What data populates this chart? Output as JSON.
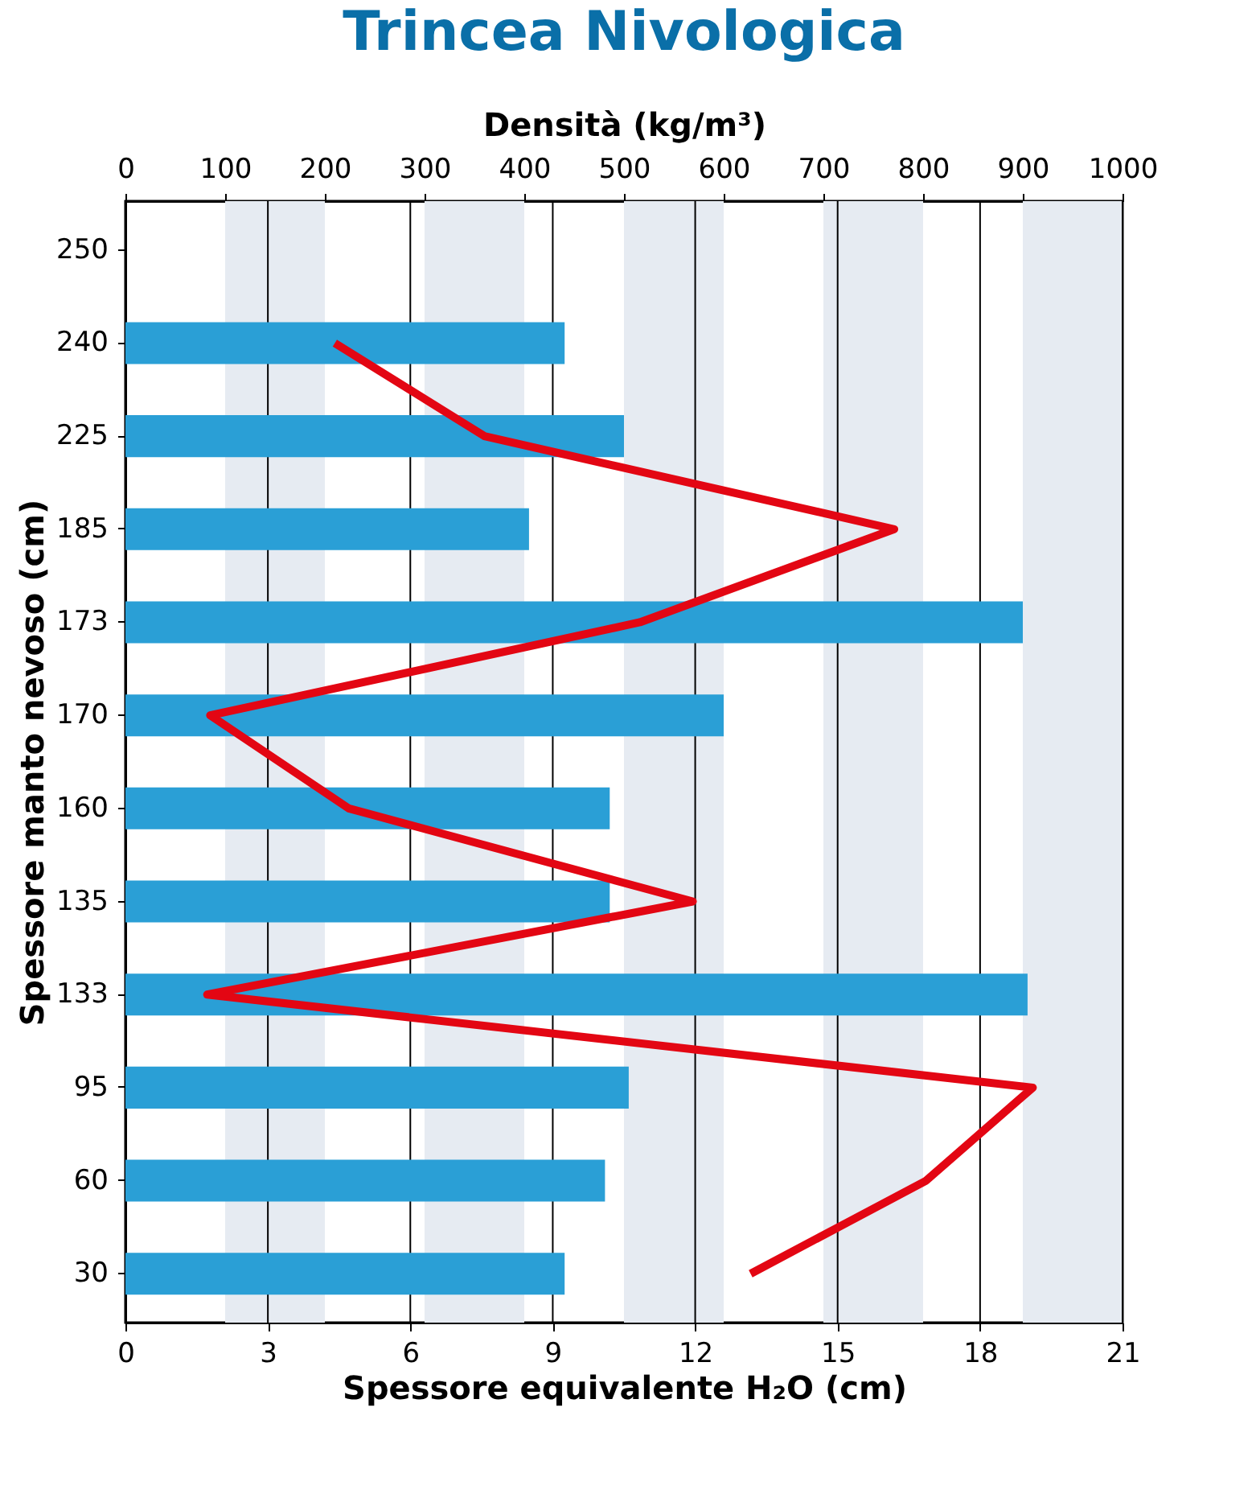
{
  "chart_data": {
    "type": "bar",
    "orientation": "horizontal",
    "title": "Trincea Nivologica",
    "xlabel": "Spessore equivalente H₂O (cm)",
    "x2label": "Densità (kg/m³)",
    "ylabel": "Spessore manto nevoso (cm)",
    "categories": [
      "250",
      "240",
      "225",
      "185",
      "173",
      "170",
      "160",
      "135",
      "133",
      "95",
      "60",
      "30"
    ],
    "series": [
      {
        "color": "#2a9fd6",
        "values": [
          null,
          9.25,
          10.5,
          8.5,
          18.9,
          12.6,
          10.2,
          10.2,
          19.0,
          10.6,
          10.1,
          9.25
        ]
      },
      {
        "type": "line",
        "axis": "x2",
        "color": "#e30613",
        "values": [
          null,
          210,
          360,
          771,
          516,
          85,
          224,
          569,
          82,
          910,
          803,
          627
        ]
      }
    ],
    "xlim": [
      0,
      21
    ],
    "xticks": [
      0,
      3,
      6,
      9,
      12,
      15,
      18,
      21
    ],
    "x2lim": [
      0,
      1000
    ],
    "x2ticks": [
      0,
      100,
      200,
      300,
      400,
      500,
      600,
      700,
      800,
      900,
      1000
    ],
    "bands": [
      {
        "axis": "x2",
        "from": 100,
        "to": 200,
        "color": "#e6ebf2"
      },
      {
        "axis": "x2",
        "from": 300,
        "to": 400,
        "color": "#e6ebf2"
      },
      {
        "axis": "x2",
        "from": 500,
        "to": 600,
        "color": "#e6ebf2"
      },
      {
        "axis": "x2",
        "from": 700,
        "to": 800,
        "color": "#e6ebf2"
      },
      {
        "axis": "x2",
        "from": 900,
        "to": 1000,
        "color": "#e6ebf2"
      }
    ],
    "grid": "x",
    "line_style": "solid",
    "marker": "none"
  }
}
